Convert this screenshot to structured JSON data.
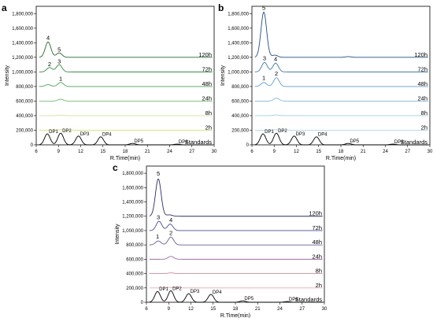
{
  "chart_data": [
    {
      "panel": "a",
      "type": "line",
      "xlabel": "R.Time(min)",
      "ylabel": "Intensity",
      "xlim": [
        6,
        30
      ],
      "ylim": [
        0,
        1900000
      ],
      "xticks": [
        6,
        9,
        12,
        15,
        18,
        21,
        24,
        27,
        30
      ],
      "yticks": [
        0,
        200000,
        400000,
        600000,
        800000,
        1000000,
        1200000,
        1400000,
        1600000,
        1800000
      ],
      "ytick_labels": [
        "0",
        "200,000",
        "400,000",
        "600,000",
        "800,000",
        "1,000,000",
        "1,200,000",
        "1,400,000",
        "1,600,000",
        "1,800,000"
      ],
      "traces": [
        {
          "label": "Standards",
          "offset": 0,
          "color": "#000000",
          "peaks": [
            [
              7.5,
              150000
            ],
            [
              9.3,
              160000
            ],
            [
              11.7,
              120000
            ],
            [
              14.7,
              110000
            ],
            [
              19.0,
              20000
            ],
            [
              25.0,
              10000
            ]
          ]
        },
        {
          "label": "2h",
          "offset": 200000,
          "color": "#d6e36a",
          "peaks": [
            [
              9.3,
              6000
            ]
          ]
        },
        {
          "label": "8h",
          "offset": 400000,
          "color": "#cfe0a0",
          "peaks": [
            [
              9.3,
              8000
            ]
          ]
        },
        {
          "label": "24h",
          "offset": 600000,
          "color": "#6fbf73",
          "peaks": [
            [
              9.3,
              25000
            ]
          ]
        },
        {
          "label": "48h",
          "offset": 800000,
          "color": "#4aa350",
          "peaks": [
            [
              7.6,
              25000
            ],
            [
              9.3,
              55000
            ]
          ]
        },
        {
          "label": "72h",
          "offset": 1000000,
          "color": "#2e8b3e",
          "peaks": [
            [
              7.8,
              60000
            ],
            [
              9.1,
              100000
            ]
          ]
        },
        {
          "label": "120h",
          "offset": 1200000,
          "color": "#1f6b2e",
          "peaks": [
            [
              7.6,
              210000
            ],
            [
              9.1,
              60000
            ]
          ]
        }
      ],
      "peak_labels": [
        {
          "text": "4",
          "x": 7.6,
          "y": 1440000
        },
        {
          "text": "5",
          "x": 9.1,
          "y": 1280000
        },
        {
          "text": "2",
          "x": 7.8,
          "y": 1080000
        },
        {
          "text": "3",
          "x": 9.1,
          "y": 1120000
        },
        {
          "text": "1",
          "x": 9.3,
          "y": 880000
        }
      ],
      "dp_labels": [
        {
          "text": "DP1",
          "x": 7.5
        },
        {
          "text": "DP2",
          "x": 9.3
        },
        {
          "text": "DP3",
          "x": 11.7
        },
        {
          "text": "DP4",
          "x": 14.7
        },
        {
          "text": "DP5",
          "x": 19.0
        },
        {
          "text": "DP6",
          "x": 25.0
        }
      ]
    },
    {
      "panel": "b",
      "type": "line",
      "xlabel": "R.Time(min)",
      "ylabel": "Intensity",
      "xlim": [
        6,
        30
      ],
      "ylim": [
        0,
        1900000
      ],
      "xticks": [
        6,
        9,
        12,
        15,
        18,
        21,
        24,
        27,
        30
      ],
      "yticks": [
        0,
        200000,
        400000,
        600000,
        800000,
        1000000,
        1200000,
        1400000,
        1600000,
        1800000
      ],
      "ytick_labels": [
        "0",
        "200,000",
        "400,000",
        "600,000",
        "800,000",
        "1,000,000",
        "1,200,000",
        "1,400,000",
        "1,600,000",
        "1,800,000"
      ],
      "traces": [
        {
          "label": "Standards",
          "offset": 0,
          "color": "#000000",
          "peaks": [
            [
              7.5,
              150000
            ],
            [
              9.3,
              160000
            ],
            [
              11.7,
              120000
            ],
            [
              14.7,
              110000
            ],
            [
              19.0,
              20000
            ],
            [
              25.0,
              10000
            ]
          ]
        },
        {
          "label": "2h",
          "offset": 200000,
          "color": "#a9d4ea",
          "peaks": [
            [
              9.3,
              6000
            ]
          ]
        },
        {
          "label": "8h",
          "offset": 400000,
          "color": "#9ccbe6",
          "peaks": [
            [
              9.3,
              10000
            ]
          ]
        },
        {
          "label": "24h",
          "offset": 600000,
          "color": "#7fb8de",
          "peaks": [
            [
              9.3,
              40000
            ]
          ]
        },
        {
          "label": "48h",
          "offset": 800000,
          "color": "#5c9ed0",
          "peaks": [
            [
              7.6,
              55000
            ],
            [
              9.3,
              120000
            ]
          ]
        },
        {
          "label": "72h",
          "offset": 1000000,
          "color": "#3a78b8",
          "peaks": [
            [
              7.7,
              130000
            ],
            [
              9.2,
              120000
            ]
          ]
        },
        {
          "label": "120h",
          "offset": 1200000,
          "color": "#1f4e8c",
          "peaks": [
            [
              7.6,
              620000
            ],
            [
              9.1,
              30000
            ],
            [
              19.0,
              10000
            ]
          ]
        }
      ],
      "peak_labels": [
        {
          "text": "5",
          "x": 7.6,
          "y": 1850000
        },
        {
          "text": "3",
          "x": 7.7,
          "y": 1160000
        },
        {
          "text": "4",
          "x": 9.2,
          "y": 1150000
        },
        {
          "text": "1",
          "x": 7.6,
          "y": 890000
        },
        {
          "text": "2",
          "x": 9.3,
          "y": 950000
        }
      ],
      "dp_labels": [
        {
          "text": "DP1",
          "x": 7.5
        },
        {
          "text": "DP2",
          "x": 9.3
        },
        {
          "text": "DP3",
          "x": 11.7
        },
        {
          "text": "DP4",
          "x": 14.7
        },
        {
          "text": "DP5",
          "x": 19.0
        },
        {
          "text": "DP6",
          "x": 25.0
        }
      ]
    },
    {
      "panel": "c",
      "type": "line",
      "xlabel": "R.Time(min)",
      "ylabel": "Intensity",
      "xlim": [
        6,
        30
      ],
      "ylim": [
        0,
        1900000
      ],
      "xticks": [
        6,
        9,
        12,
        15,
        18,
        21,
        24,
        27,
        30
      ],
      "yticks": [
        0,
        200000,
        400000,
        600000,
        800000,
        1000000,
        1200000,
        1400000,
        1600000,
        1800000
      ],
      "ytick_labels": [
        "0",
        "200,000",
        "400,000",
        "600,000",
        "800,000",
        "1,000,000",
        "1,200,000",
        "1,400,000",
        "1,600,000",
        "1,800,000"
      ],
      "traces": [
        {
          "label": "Standards",
          "offset": 0,
          "color": "#000000",
          "peaks": [
            [
              7.5,
              150000
            ],
            [
              9.3,
              160000
            ],
            [
              11.7,
              120000
            ],
            [
              14.7,
              110000
            ],
            [
              19.0,
              20000
            ],
            [
              25.0,
              10000
            ]
          ]
        },
        {
          "label": "2h",
          "offset": 200000,
          "color": "#e9a7b8",
          "peaks": [
            [
              9.3,
              6000
            ]
          ]
        },
        {
          "label": "8h",
          "offset": 400000,
          "color": "#d9869c",
          "peaks": [
            [
              9.3,
              10000
            ]
          ]
        },
        {
          "label": "24h",
          "offset": 600000,
          "color": "#a46aa8",
          "peaks": [
            [
              9.3,
              40000
            ]
          ]
        },
        {
          "label": "48h",
          "offset": 800000,
          "color": "#6a5aa0",
          "peaks": [
            [
              7.6,
              55000
            ],
            [
              9.3,
              110000
            ]
          ]
        },
        {
          "label": "72h",
          "offset": 1000000,
          "color": "#4a4a98",
          "peaks": [
            [
              7.7,
              130000
            ],
            [
              9.2,
              90000
            ]
          ]
        },
        {
          "label": "120h",
          "offset": 1200000,
          "color": "#2c2c6e",
          "peaks": [
            [
              7.6,
              520000
            ],
            [
              9.1,
              20000
            ]
          ]
        }
      ],
      "peak_labels": [
        {
          "text": "5",
          "x": 7.6,
          "y": 1770000
        },
        {
          "text": "3",
          "x": 7.6,
          "y": 1160000
        },
        {
          "text": "4",
          "x": 9.3,
          "y": 1120000
        },
        {
          "text": "1",
          "x": 7.5,
          "y": 890000
        },
        {
          "text": "2",
          "x": 9.3,
          "y": 940000
        }
      ],
      "dp_labels": [
        {
          "text": "DP1",
          "x": 7.5
        },
        {
          "text": "DP2",
          "x": 9.3
        },
        {
          "text": "DP3",
          "x": 11.7
        },
        {
          "text": "DP4",
          "x": 14.7
        },
        {
          "text": "DP5",
          "x": 19.0
        },
        {
          "text": "DP6",
          "x": 25.0
        }
      ]
    }
  ]
}
